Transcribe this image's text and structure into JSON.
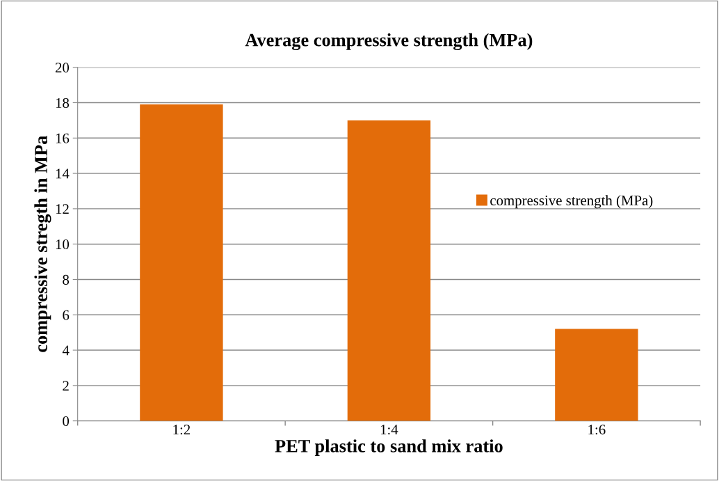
{
  "chart_data": {
    "type": "bar",
    "title": "Average compressive strength (MPa)",
    "xlabel": "PET plastic to sand mix ratio",
    "ylabel": "compressive stregth in MPa",
    "categories": [
      "1:2",
      "1:4",
      "1:6"
    ],
    "series": [
      {
        "name": "compressive strength (MPa)",
        "color": "#e36c0a",
        "values": [
          17.9,
          17.0,
          5.2
        ]
      }
    ],
    "ylim": [
      0,
      20
    ],
    "yticks": [
      0,
      2,
      4,
      6,
      8,
      10,
      12,
      14,
      16,
      18,
      20
    ],
    "grid": "y",
    "legend": "right"
  }
}
